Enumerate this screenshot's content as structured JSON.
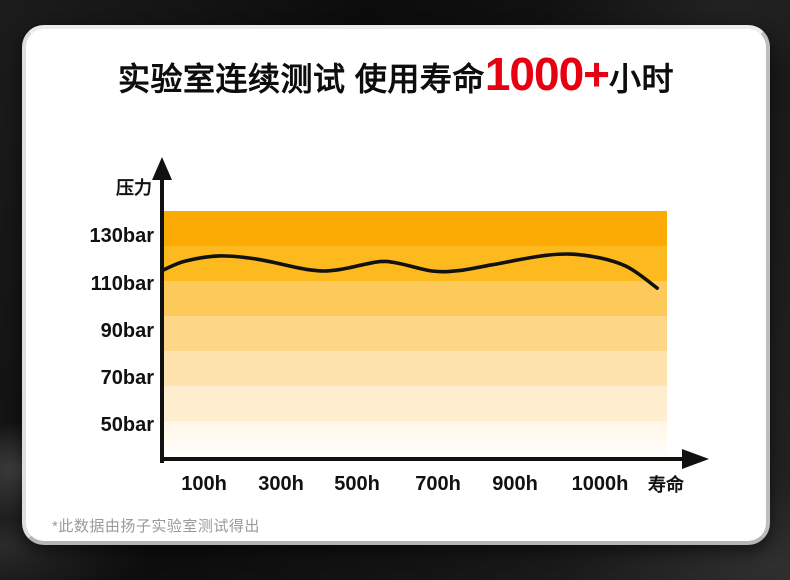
{
  "title": {
    "prefix": "实验室连续测试 使用寿命",
    "highlight": "1000+",
    "suffix": "小时",
    "highlight_color": "#e60012"
  },
  "chart": {
    "y_axis_title": "压力",
    "x_axis_end_label": "寿命",
    "y_ticks": [
      "130bar",
      "110bar",
      "90bar",
      "70bar",
      "50bar"
    ],
    "x_ticks": [
      "100h",
      "300h",
      "500h",
      "700h",
      "900h",
      "1000h"
    ],
    "band_colors": [
      "#fbab04",
      "#fcba1e",
      "#fdc95a",
      "#fdd687",
      "#fee3ac",
      "#feedce",
      "#fff6e6"
    ],
    "axis_color": "#111111",
    "curve_color": "#111111"
  },
  "chart_data": {
    "type": "line",
    "title": "实验室连续测试 使用寿命1000+小时",
    "xlabel": "寿命",
    "ylabel": "压力",
    "x_unit": "h",
    "y_unit": "bar",
    "x_tick_labels": [
      "100h",
      "300h",
      "500h",
      "700h",
      "900h",
      "1000h",
      "寿命"
    ],
    "y_tick_labels": [
      "130bar",
      "110bar",
      "90bar",
      "70bar",
      "50bar"
    ],
    "ylim": [
      40,
      145
    ],
    "points": [
      [
        0,
        115.8
      ],
      [
        55,
        119.6
      ],
      [
        140,
        121.7
      ],
      [
        240,
        120.3
      ],
      [
        375,
        115.9
      ],
      [
        450,
        115.9
      ],
      [
        550,
        119.2
      ],
      [
        600,
        118.7
      ],
      [
        685,
        115.4
      ],
      [
        755,
        115.6
      ],
      [
        840,
        118.0
      ],
      [
        940,
        122.1
      ],
      [
        985,
        121.8
      ],
      [
        1030,
        117.5
      ],
      [
        1067,
        108.3
      ]
    ],
    "legend": [],
    "grid": false
  },
  "footnote": "*此数据由扬子实验室测试得出"
}
